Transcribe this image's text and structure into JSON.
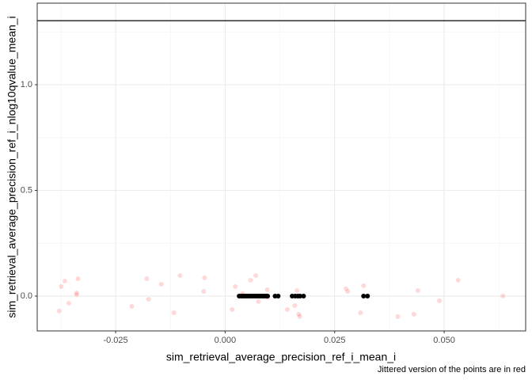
{
  "chart_data": {
    "type": "scatter",
    "x_label": "sim_retrieval_average_precision_ref_i_mean_i",
    "y_label": "sim_retrieval_average_precision_ref_i_nlog10qvalue_mean_i",
    "caption": "Jittered version of the points are in red",
    "xlim": [
      -0.0429,
      0.0686
    ],
    "ylim": [
      -0.165,
      1.386
    ],
    "xticks": [
      -0.025,
      {
        "value": 0,
        "label": "0.000"
      },
      0.025,
      {
        "value": 0.05,
        "label": "0.050"
      }
    ],
    "yticks": [
      {
        "value": 0,
        "label": "0.0"
      },
      0.5,
      {
        "value": 1,
        "label": "1.0"
      }
    ],
    "x_minor_ticks": [
      -0.0375,
      -0.0125,
      0.0125,
      0.0375,
      0.0625
    ],
    "y_minor_ticks": [
      0.25,
      0.75,
      1.25
    ],
    "grid": true,
    "hline": 1.303,
    "series": [
      {
        "color": "#ff0000",
        "alpha": 0.15,
        "x": [
          -0.0379,
          -0.0374,
          -0.0366,
          -0.0357,
          -0.0339,
          -0.0339,
          -0.0336,
          -0.0213,
          -0.0179,
          -0.0175,
          -0.0146,
          -0.0117,
          -0.0103,
          -0.0049,
          -0.0047,
          0.0016,
          0.0023,
          0.004,
          0.0058,
          0.007,
          0.0076,
          0.0096,
          0.0097,
          0.0142,
          0.0159,
          0.0164,
          0.0168,
          0.017,
          0.0276,
          0.028,
          0.0309,
          0.0316,
          0.0394,
          0.0431,
          0.044,
          0.0489,
          0.0532,
          0.0634
        ],
        "values": [
          -0.071,
          0.045,
          0.071,
          -0.034,
          0.015,
          0.007,
          0.082,
          -0.049,
          0.082,
          -0.015,
          0.056,
          -0.079,
          0.097,
          0.022,
          0.086,
          -0.064,
          0.045,
          0.011,
          0.075,
          0.097,
          -0.026,
          0.03,
          -0.007,
          -0.064,
          -0.045,
          0.026,
          -0.086,
          -0.097,
          0.034,
          0.022,
          -0.079,
          0.049,
          -0.097,
          -0.086,
          0.026,
          -0.022,
          0.075,
          0
        ]
      },
      {
        "color": "#000000",
        "alpha": 1,
        "x": [
          0.0032,
          0.0036,
          0.004,
          0.0043,
          0.0047,
          0.005,
          0.0054,
          0.0058,
          0.0061,
          0.0065,
          0.0069,
          0.0072,
          0.0076,
          0.0079,
          0.0083,
          0.0087,
          0.009,
          0.0094,
          0.0097,
          0.0114,
          0.0121,
          0.0153,
          0.016,
          0.0166,
          0.0171,
          0.0179,
          0.0316,
          0.0325
        ],
        "values": [
          0,
          0,
          0,
          0,
          0,
          0,
          0,
          0,
          0,
          0,
          0,
          0,
          0,
          0,
          0,
          0,
          0,
          0,
          0,
          0,
          0,
          0,
          0,
          0,
          0,
          0,
          0,
          0
        ]
      }
    ]
  }
}
